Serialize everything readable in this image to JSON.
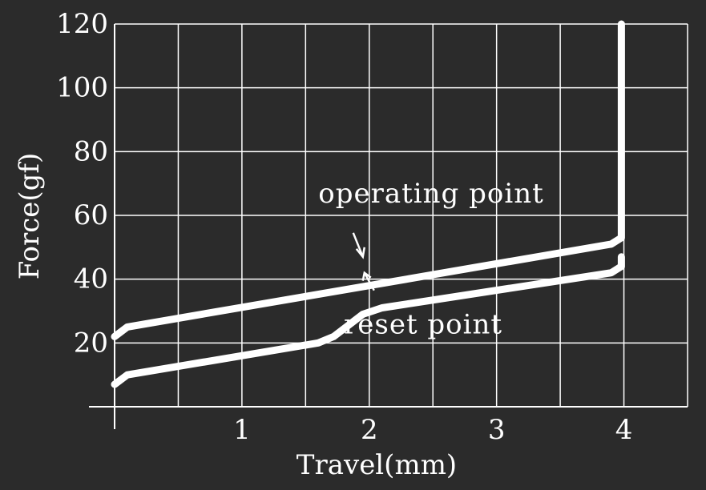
{
  "chart_data": {
    "type": "line",
    "title": "",
    "xlabel": "Travel(mm)",
    "ylabel": "Force(gf)",
    "xlim": [
      0,
      4.5
    ],
    "ylim": [
      0,
      120
    ],
    "x_ticks": [
      1,
      2,
      3,
      4
    ],
    "y_ticks": [
      20,
      40,
      60,
      80,
      100,
      120
    ],
    "grid": true,
    "colors": {
      "background": "#2b2b2b",
      "foreground": "#ffffff"
    },
    "series": [
      {
        "x": [
          0,
          0.1,
          3.9,
          3.98,
          3.98
        ],
        "y": [
          22,
          25,
          51,
          53,
          120
        ]
      },
      {
        "x": [
          0,
          0.1,
          1.6,
          1.72,
          1.95,
          2.1,
          3.9,
          3.98,
          3.98
        ],
        "y": [
          7,
          10,
          20,
          22,
          29,
          31,
          42,
          44,
          47
        ]
      }
    ],
    "annotations": [
      {
        "text": "operating point",
        "target_x": 2.0,
        "target_y": 47,
        "label_x": 1.6,
        "label_y": 64
      },
      {
        "text": "reset point",
        "target_x": 2.0,
        "target_y": 40,
        "label_x": 1.8,
        "label_y": 23
      }
    ]
  }
}
